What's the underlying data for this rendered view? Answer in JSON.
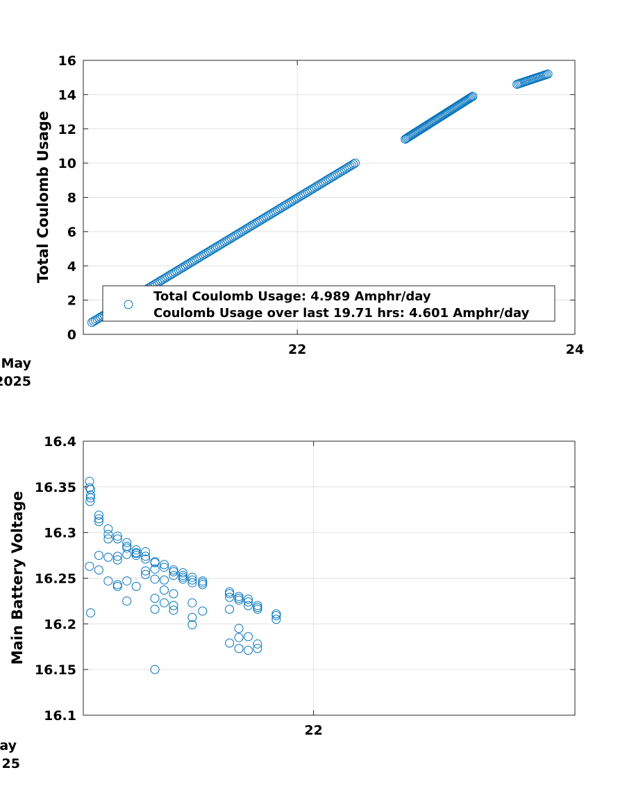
{
  "chart_data": [
    {
      "type": "scatter",
      "ylabel": "Total Coulomb Usage",
      "xlabel": "",
      "date_label_lines": [
        "May",
        "2025"
      ],
      "xlim": [
        "2025-05-20T11:00",
        "2025-05-24T00:00"
      ],
      "ylim": [
        0,
        16
      ],
      "xticks": [
        {
          "label": "22",
          "value": "2025-05-22T00:00"
        },
        {
          "label": "24",
          "value": "2025-05-24T00:00"
        }
      ],
      "yticks": [
        "0",
        "2",
        "4",
        "6",
        "8",
        "10",
        "12",
        "14",
        "16"
      ],
      "grid": true,
      "marker_color": "#0072BD",
      "legend": {
        "placement": "bottom-right",
        "lines": [
          "Total Coulomb Usage:  4.989 Amphr/day",
          "Coulomb Usage over last 19.71 hrs:  4.601 Amphr/day"
        ]
      },
      "segments": [
        {
          "start": "2025-05-20T12:30",
          "end": "2025-05-22T10:00",
          "y_start": 0.7,
          "y_end": 10.0,
          "count": 150
        },
        {
          "start": "2025-05-22T18:40",
          "end": "2025-05-23T06:20",
          "y_start": 11.4,
          "y_end": 13.9,
          "count": 60
        },
        {
          "start": "2025-05-23T14:00",
          "end": "2025-05-23T19:20",
          "y_start": 14.6,
          "y_end": 15.2,
          "count": 22
        }
      ]
    },
    {
      "type": "scatter",
      "ylabel": "Main Battery Voltage",
      "xlabel": "",
      "date_label_lines": [
        "ay",
        "25"
      ],
      "xlim": [
        "2025-05-20T11:00",
        "2025-05-23T18:00"
      ],
      "ylim": [
        16.1,
        16.4
      ],
      "xticks": [
        {
          "label": "22",
          "value": "2025-05-22T00:00"
        }
      ],
      "yticks": [
        "16.1",
        "16.15",
        "16.2",
        "16.25",
        "16.3",
        "16.35",
        "16.4"
      ],
      "grid": true,
      "marker_color": "#0072BD",
      "points": [
        [
          "2025-05-20T12:00",
          16.356
        ],
        [
          "2025-05-20T12:00",
          16.349
        ],
        [
          "2025-05-20T12:10",
          16.347
        ],
        [
          "2025-05-20T12:10",
          16.341
        ],
        [
          "2025-05-20T12:10",
          16.338
        ],
        [
          "2025-05-20T12:05",
          16.334
        ],
        [
          "2025-05-20T12:00",
          16.263
        ],
        [
          "2025-05-20T12:10",
          16.212
        ],
        [
          "2025-05-20T13:30",
          16.319
        ],
        [
          "2025-05-20T13:30",
          16.315
        ],
        [
          "2025-05-20T13:30",
          16.312
        ],
        [
          "2025-05-20T13:30",
          16.275
        ],
        [
          "2025-05-20T13:30",
          16.259
        ],
        [
          "2025-05-20T15:00",
          16.304
        ],
        [
          "2025-05-20T15:00",
          16.298
        ],
        [
          "2025-05-20T15:00",
          16.293
        ],
        [
          "2025-05-20T15:00",
          16.273
        ],
        [
          "2025-05-20T15:00",
          16.247
        ],
        [
          "2025-05-20T16:30",
          16.296
        ],
        [
          "2025-05-20T16:30",
          16.293
        ],
        [
          "2025-05-20T16:30",
          16.274
        ],
        [
          "2025-05-20T16:30",
          16.27
        ],
        [
          "2025-05-20T16:30",
          16.243
        ],
        [
          "2025-05-20T16:30",
          16.241
        ],
        [
          "2025-05-20T18:00",
          16.289
        ],
        [
          "2025-05-20T18:00",
          16.285
        ],
        [
          "2025-05-20T18:00",
          16.283
        ],
        [
          "2025-05-20T18:00",
          16.276
        ],
        [
          "2025-05-20T18:00",
          16.247
        ],
        [
          "2025-05-20T18:00",
          16.225
        ],
        [
          "2025-05-20T19:30",
          16.281
        ],
        [
          "2025-05-20T19:30",
          16.278
        ],
        [
          "2025-05-20T19:30",
          16.277
        ],
        [
          "2025-05-20T19:30",
          16.275
        ],
        [
          "2025-05-20T19:30",
          16.241
        ],
        [
          "2025-05-20T21:00",
          16.279
        ],
        [
          "2025-05-20T21:00",
          16.274
        ],
        [
          "2025-05-20T21:00",
          16.271
        ],
        [
          "2025-05-20T21:00",
          16.258
        ],
        [
          "2025-05-20T21:00",
          16.254
        ],
        [
          "2025-05-20T22:30",
          16.268
        ],
        [
          "2025-05-20T22:30",
          16.267
        ],
        [
          "2025-05-20T22:30",
          16.26
        ],
        [
          "2025-05-20T22:30",
          16.249
        ],
        [
          "2025-05-20T22:30",
          16.228
        ],
        [
          "2025-05-20T22:30",
          16.216
        ],
        [
          "2025-05-20T22:30",
          16.15
        ],
        [
          "2025-05-21T00:00",
          16.265
        ],
        [
          "2025-05-21T00:00",
          16.262
        ],
        [
          "2025-05-21T00:00",
          16.248
        ],
        [
          "2025-05-21T00:00",
          16.237
        ],
        [
          "2025-05-21T00:00",
          16.223
        ],
        [
          "2025-05-21T01:30",
          16.259
        ],
        [
          "2025-05-21T01:30",
          16.257
        ],
        [
          "2025-05-21T01:30",
          16.253
        ],
        [
          "2025-05-21T01:30",
          16.233
        ],
        [
          "2025-05-21T01:30",
          16.22
        ],
        [
          "2025-05-21T01:30",
          16.215
        ],
        [
          "2025-05-21T03:00",
          16.256
        ],
        [
          "2025-05-21T03:00",
          16.253
        ],
        [
          "2025-05-21T03:00",
          16.251
        ],
        [
          "2025-05-21T03:00",
          16.249
        ],
        [
          "2025-05-21T04:30",
          16.251
        ],
        [
          "2025-05-21T04:30",
          16.248
        ],
        [
          "2025-05-21T04:30",
          16.245
        ],
        [
          "2025-05-21T04:30",
          16.223
        ],
        [
          "2025-05-21T04:30",
          16.207
        ],
        [
          "2025-05-21T04:30",
          16.199
        ],
        [
          "2025-05-21T06:10",
          16.247
        ],
        [
          "2025-05-21T06:10",
          16.245
        ],
        [
          "2025-05-21T06:10",
          16.243
        ],
        [
          "2025-05-21T06:10",
          16.214
        ],
        [
          "2025-05-21T10:30",
          16.235
        ],
        [
          "2025-05-21T10:30",
          16.233
        ],
        [
          "2025-05-21T10:30",
          16.229
        ],
        [
          "2025-05-21T10:30",
          16.216
        ],
        [
          "2025-05-21T10:30",
          16.179
        ],
        [
          "2025-05-21T12:00",
          16.23
        ],
        [
          "2025-05-21T12:00",
          16.228
        ],
        [
          "2025-05-21T12:00",
          16.226
        ],
        [
          "2025-05-21T12:00",
          16.195
        ],
        [
          "2025-05-21T12:00",
          16.185
        ],
        [
          "2025-05-21T12:00",
          16.173
        ],
        [
          "2025-05-21T13:30",
          16.227
        ],
        [
          "2025-05-21T13:30",
          16.224
        ],
        [
          "2025-05-21T13:30",
          16.22
        ],
        [
          "2025-05-21T13:30",
          16.186
        ],
        [
          "2025-05-21T13:30",
          16.171
        ],
        [
          "2025-05-21T15:00",
          16.22
        ],
        [
          "2025-05-21T15:00",
          16.218
        ],
        [
          "2025-05-21T15:00",
          16.216
        ],
        [
          "2025-05-21T15:00",
          16.178
        ],
        [
          "2025-05-21T15:00",
          16.173
        ],
        [
          "2025-05-21T18:00",
          16.211
        ],
        [
          "2025-05-21T18:00",
          16.209
        ],
        [
          "2025-05-21T18:00",
          16.205
        ]
      ]
    }
  ]
}
